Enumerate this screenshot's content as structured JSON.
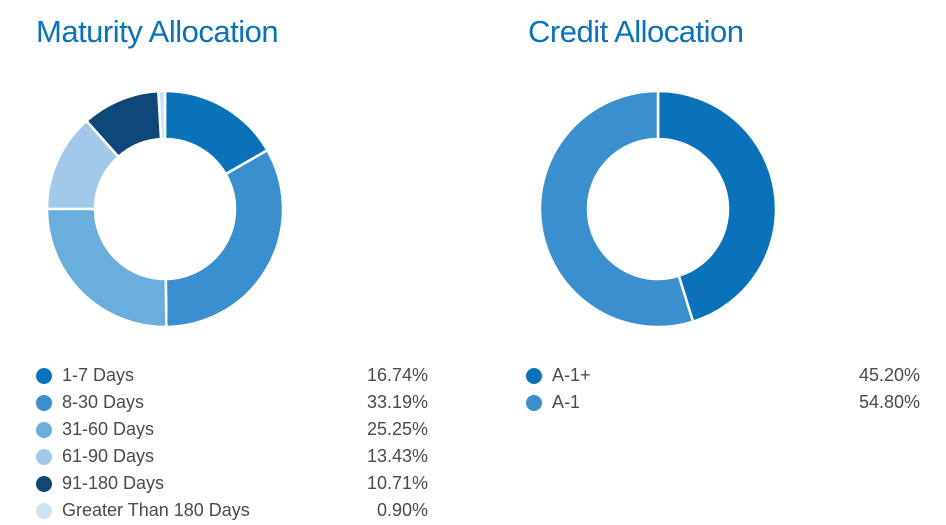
{
  "chart_data": [
    {
      "type": "pie",
      "title": "Maturity Allocation",
      "categories": [
        "1-7 Days",
        "8-30 Days",
        "31-60 Days",
        "61-90 Days",
        "91-180 Days",
        "Greater Than 180 Days"
      ],
      "values": [
        16.74,
        33.19,
        25.25,
        13.43,
        10.71,
        0.9
      ],
      "value_labels": [
        "16.74%",
        "33.19%",
        "25.25%",
        "13.43%",
        "10.71%",
        "0.90%"
      ],
      "colors": [
        "#0a72b8",
        "#3a8fcf",
        "#6aafdc",
        "#a2c9e9",
        "#0d4878",
        "#cde3f4"
      ],
      "legend_position": "bottom"
    },
    {
      "type": "pie",
      "title": "Credit Allocation",
      "categories": [
        "A-1+",
        "A-1"
      ],
      "values": [
        45.2,
        54.8
      ],
      "value_labels": [
        "45.20%",
        "54.80%"
      ],
      "colors": [
        "#0a72b8",
        "#3a8fcf"
      ],
      "legend_position": "bottom"
    }
  ]
}
